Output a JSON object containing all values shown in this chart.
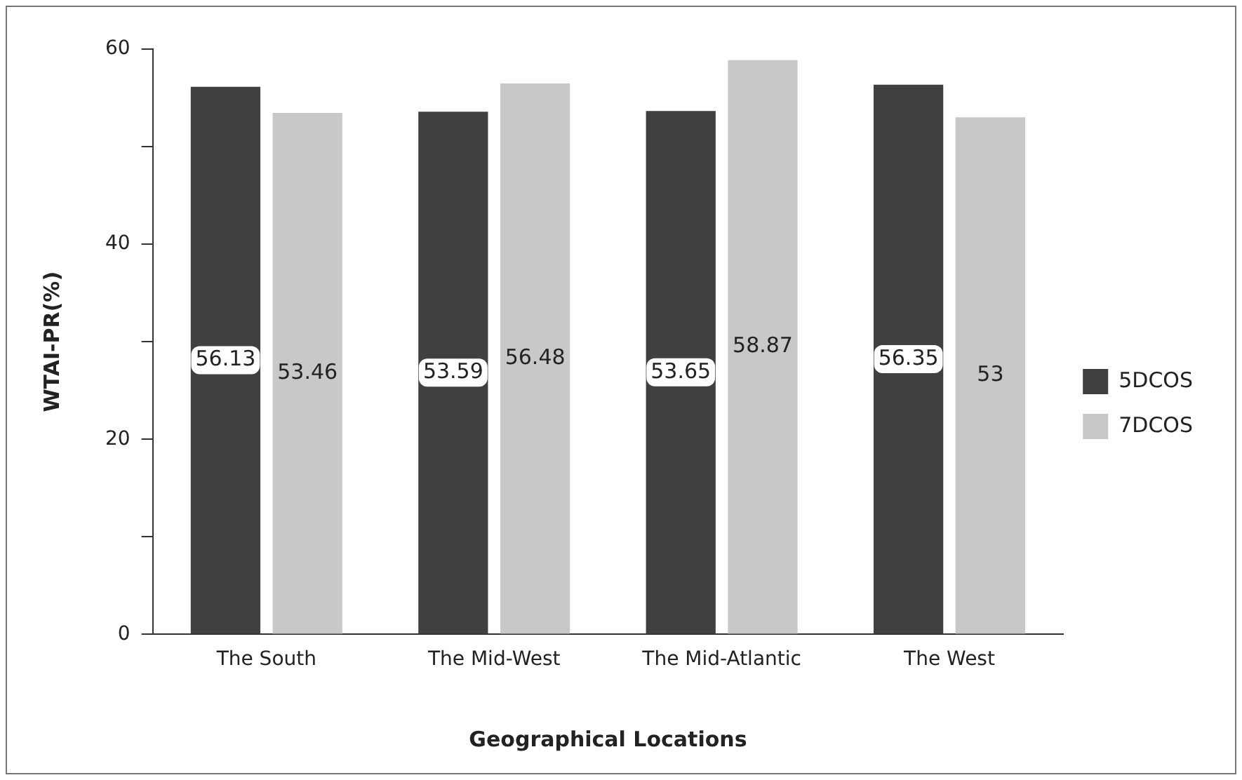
{
  "chart_data": {
    "type": "bar",
    "xlabel": "Geographical Locations",
    "ylabel": "WTAI-PR(%)",
    "categories": [
      "The South",
      "The Mid-West",
      "The Mid-Atlantic",
      "The West"
    ],
    "series": [
      {
        "name": "5DCOS",
        "color": "#404040",
        "values": [
          56.13,
          53.59,
          53.65,
          56.35
        ]
      },
      {
        "name": "7DCOS",
        "color": "#c8c8c8",
        "values": [
          53.46,
          56.48,
          58.87,
          53
        ]
      }
    ],
    "ylim": [
      0,
      60
    ],
    "yticks": [
      0,
      {
        "value": 10,
        "label": null
      },
      20,
      {
        "value": 30,
        "label": null
      },
      40,
      {
        "value": 50,
        "label": null
      },
      60
    ],
    "grid": false,
    "legend": "right",
    "data_labels": true
  }
}
